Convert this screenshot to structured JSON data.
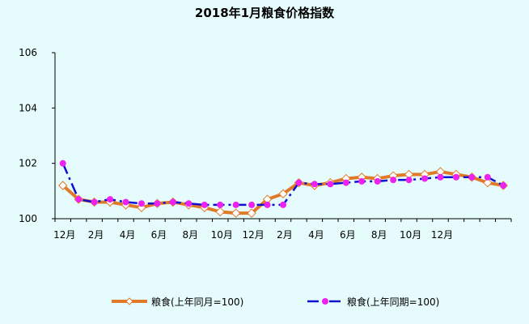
{
  "chart_data": {
    "type": "line",
    "title": "2018年1月粮食价格指数",
    "xlabel": "",
    "ylabel": "",
    "ylim": [
      100,
      106
    ],
    "yticks": [
      "100",
      "102",
      "104",
      "106"
    ],
    "xticks": [
      "12月",
      "2月",
      "4月",
      "6月",
      "8月",
      "10月",
      "12月",
      "2月",
      "4月",
      "6月",
      "8月",
      "10月",
      "12月"
    ],
    "grid": false,
    "legend_position": "bottom",
    "series": [
      {
        "name": "粮食(上年同月=100)",
        "color": "#e07a28",
        "marker": "diamond",
        "values": [
          101.2,
          100.7,
          100.6,
          100.6,
          100.5,
          100.4,
          100.55,
          100.6,
          100.5,
          100.4,
          100.25,
          100.2,
          100.2,
          100.7,
          100.9,
          101.3,
          101.2,
          101.3,
          101.45,
          101.5,
          101.45,
          101.55,
          101.6,
          101.6,
          101.7,
          101.6,
          101.5,
          101.3,
          101.2
        ]
      },
      {
        "name": "粮食(上年同期=100)",
        "color": "#1010d0",
        "marker": "dot",
        "marker_color": "#ee22ee",
        "values": [
          102.0,
          100.7,
          100.6,
          100.7,
          100.6,
          100.55,
          100.55,
          100.6,
          100.55,
          100.5,
          100.5,
          100.5,
          100.5,
          100.5,
          100.5,
          101.3,
          101.25,
          101.25,
          101.3,
          101.35,
          101.35,
          101.4,
          101.4,
          101.45,
          101.5,
          101.5,
          101.5,
          101.5,
          101.2
        ]
      }
    ]
  }
}
